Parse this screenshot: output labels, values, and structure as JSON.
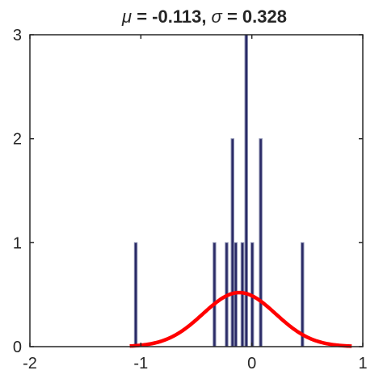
{
  "chart_data": {
    "type": "bar",
    "title_mu_symbol": "μ",
    "title_mu_value": " = -0.113, ",
    "title_sigma_symbol": "σ",
    "title_sigma_value": " = 0.328",
    "xlim": [
      -2,
      1
    ],
    "ylim": [
      0,
      3
    ],
    "x_ticks": [
      -2,
      -1,
      0,
      1
    ],
    "x_tick_labels": [
      "-2",
      "-1",
      "0",
      "1"
    ],
    "y_ticks": [
      0,
      1,
      2,
      3
    ],
    "y_tick_labels": [
      "0",
      "1",
      "2",
      "3"
    ],
    "grid": false,
    "bar_width": 0.025,
    "bars": [
      {
        "x": -1.046,
        "count": 1
      },
      {
        "x": -0.337,
        "count": 1
      },
      {
        "x": -0.227,
        "count": 1
      },
      {
        "x": -0.174,
        "count": 2
      },
      {
        "x": -0.145,
        "count": 1
      },
      {
        "x": -0.05,
        "count": 3
      },
      {
        "x": -0.085,
        "count": 1
      },
      {
        "x": 0.004,
        "count": 1
      },
      {
        "x": 0.08,
        "count": 2
      },
      {
        "x": 0.456,
        "count": 1
      }
    ],
    "fit_curve": {
      "type": "normal",
      "mu": -0.113,
      "sigma": 0.328,
      "x_range": [
        -1.1,
        0.9
      ],
      "peak": 0.52
    },
    "colors": {
      "bar_fill": "#2a2a66",
      "bar_edge": "#8a8fb0",
      "curve": "#ff0000",
      "axis": "#262626"
    }
  }
}
